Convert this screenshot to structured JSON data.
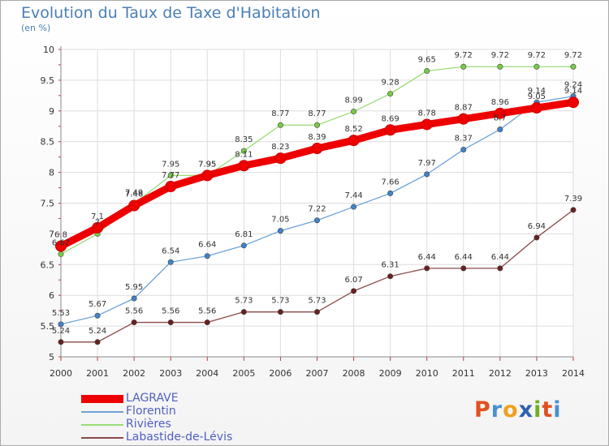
{
  "header": {
    "title": "Evolution du Taux de Taxe d'Habitation",
    "subtitle": "(en %)"
  },
  "logo": {
    "text": "Proxiti",
    "letters": [
      "P",
      "r",
      "o",
      "x",
      "i",
      "t",
      "i"
    ]
  },
  "colors": {
    "logo": [
      "#e05020",
      "#4a90d0",
      "#f0a020",
      "#3060b0",
      "#70b020",
      "#e05020",
      "#4a90d0"
    ]
  },
  "chart_data": {
    "type": "line",
    "title": "Evolution du Taux de Taxe d'Habitation",
    "ylabel": "(en %)",
    "x": [
      2000,
      2001,
      2002,
      2003,
      2004,
      2005,
      2006,
      2007,
      2008,
      2009,
      2010,
      2011,
      2012,
      2013,
      2014
    ],
    "ylim": [
      5,
      10
    ],
    "yticks": [
      "5",
      "5.5",
      "6",
      "6.5",
      "7",
      "7.5",
      "8",
      "8.5",
      "9",
      "9.5",
      "10"
    ],
    "grid": true,
    "legend_position": "bottom-left",
    "series": [
      {
        "name": "LAGRAVE",
        "color": "#ee0000",
        "marker": "#ee0000",
        "width": 9,
        "labeled": true,
        "labels": [
          "6.8",
          "7.1",
          "7.46",
          "7.77",
          "7.95",
          "8.11",
          "8.23",
          "8.39",
          "8.52",
          "8.69",
          "8.78",
          "8.87",
          "8.96",
          "9.05",
          "9.14"
        ],
        "values": [
          6.8,
          7.1,
          7.46,
          7.77,
          7.95,
          8.11,
          8.23,
          8.39,
          8.52,
          8.69,
          8.78,
          8.87,
          8.96,
          9.05,
          9.14
        ]
      },
      {
        "name": "Florentin",
        "color": "#6fa3d6",
        "marker": "#3f84c6",
        "width": 1.3,
        "labeled": true,
        "labels": [
          "5.53",
          "5.67",
          "5.95",
          "6.54",
          "6.64",
          "6.81",
          "7.05",
          "7.22",
          "7.44",
          "7.66",
          "7.97",
          "8.37",
          "8.7",
          "9.14",
          "9.24"
        ],
        "values": [
          5.53,
          5.67,
          5.95,
          6.54,
          6.64,
          6.81,
          7.05,
          7.22,
          7.44,
          7.66,
          7.97,
          8.37,
          8.7,
          9.14,
          9.24
        ]
      },
      {
        "name": "Rivières",
        "color": "#99dd77",
        "marker": "#77cc44",
        "width": 1.3,
        "labeled": true,
        "labels": [
          "6.67",
          "7",
          "7.49",
          "7.95",
          "7.95",
          "8.35",
          "8.77",
          "8.77",
          "8.99",
          "9.28",
          "9.65",
          "9.72",
          "9.72",
          "9.72",
          "9.72"
        ],
        "values": [
          6.67,
          7.0,
          7.49,
          7.95,
          7.95,
          8.35,
          8.77,
          8.77,
          8.99,
          9.28,
          9.65,
          9.72,
          9.72,
          9.72,
          9.72
        ]
      },
      {
        "name": "Labastide-de-Lévis",
        "color": "#8a4a4a",
        "marker": "#6a2020",
        "width": 1.3,
        "labeled": true,
        "labels": [
          "5.24",
          "5.24",
          "5.56",
          "5.56",
          "5.56",
          "5.73",
          "5.73",
          "5.73",
          "6.07",
          "6.31",
          "6.44",
          "6.44",
          "6.44",
          "6.94",
          "7.39"
        ],
        "values": [
          5.24,
          5.24,
          5.56,
          5.56,
          5.56,
          5.73,
          5.73,
          5.73,
          6.07,
          6.31,
          6.44,
          6.44,
          6.44,
          6.94,
          7.39
        ]
      }
    ]
  }
}
